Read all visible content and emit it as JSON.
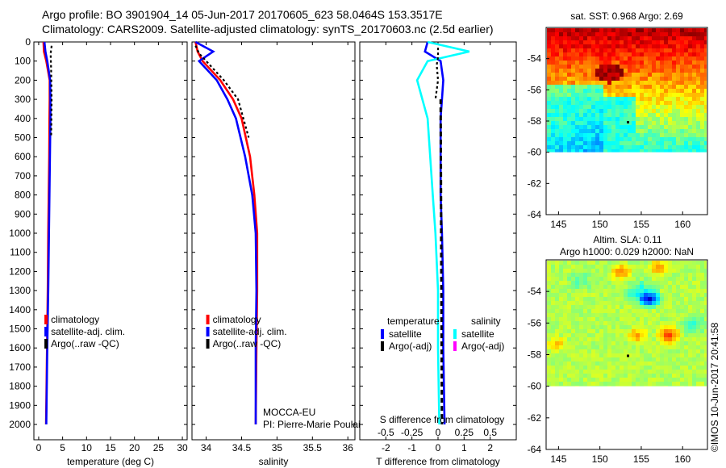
{
  "header": {
    "title_line1": "Argo profile: BO 3901904_14 05-Jun-2017 20170605_623 58.0464S 153.3517E",
    "title_line2": "Climatology: CARS2009. Satellite-adjusted climatology: synTS_20170603.nc (2.5d earlier)"
  },
  "chart_data": [
    {
      "type": "line",
      "id": "temperature",
      "xlabel": "temperature (deg C)",
      "ylabel": "",
      "xlim": [
        -1,
        31
      ],
      "ylim": [
        2080,
        0
      ],
      "xticks": [
        0,
        5,
        10,
        15,
        20,
        25,
        30
      ],
      "yticks": [
        0,
        100,
        200,
        300,
        400,
        500,
        600,
        700,
        800,
        900,
        1000,
        1100,
        1200,
        1300,
        1400,
        1500,
        1600,
        1700,
        1800,
        1900,
        2000
      ],
      "legend": [
        "climatology",
        "satellite-adj. clim.",
        "Argo(..raw -QC)"
      ],
      "series": [
        {
          "name": "climatology",
          "color": "#ff0000",
          "x": [
            1.0,
            1.1,
            1.6,
            2.3,
            2.3,
            2.25,
            2.2,
            2.1,
            2.0,
            1.9,
            1.75,
            1.55
          ],
          "y": [
            0,
            50,
            100,
            200,
            300,
            400,
            600,
            800,
            1000,
            1300,
            1600,
            2000
          ]
        },
        {
          "name": "satellite-adj. clim.",
          "color": "#0000ff",
          "x": [
            1.2,
            1.4,
            1.8,
            2.4,
            2.45,
            2.45,
            2.35,
            2.25,
            2.15,
            2.0,
            1.8,
            1.6
          ],
          "y": [
            0,
            50,
            100,
            200,
            300,
            400,
            600,
            800,
            1000,
            1300,
            1600,
            2000
          ]
        },
        {
          "name": "Argo(..raw -QC)",
          "color": "#000000",
          "x": [
            2.7,
            2.6,
            2.5,
            2.6,
            2.7,
            2.6
          ],
          "y": [
            20,
            40,
            60,
            150,
            300,
            500
          ]
        }
      ]
    },
    {
      "type": "line",
      "id": "salinity",
      "xlabel": "salinity",
      "ylabel": "",
      "xlim": [
        33.8,
        36.1
      ],
      "ylim": [
        2080,
        0
      ],
      "xticks": [
        34,
        34.5,
        35,
        35.5,
        36
      ],
      "xticklabels": [
        "34",
        "34.5",
        "35",
        "35.5",
        "36"
      ],
      "legend": [
        "climatology",
        "satellite-adj. clim.",
        "Argo(..raw -QC)"
      ],
      "annotation": [
        "MOCCA-EU",
        "PI: Pierre-Marie Poulain"
      ],
      "series": [
        {
          "name": "climatology",
          "color": "#ff0000",
          "x": [
            33.85,
            33.88,
            33.95,
            34.2,
            34.38,
            34.5,
            34.62,
            34.68,
            34.72,
            34.72,
            34.71,
            34.7
          ],
          "y": [
            0,
            50,
            100,
            200,
            300,
            400,
            600,
            800,
            1000,
            1300,
            1600,
            2000
          ]
        },
        {
          "name": "satellite-adj. clim.",
          "color": "#0000ff",
          "x": [
            33.85,
            34.1,
            33.9,
            34.15,
            34.3,
            34.42,
            34.55,
            34.65,
            34.7,
            34.71,
            34.7,
            34.7
          ],
          "y": [
            0,
            50,
            100,
            200,
            300,
            400,
            600,
            800,
            1000,
            1300,
            1600,
            2000
          ]
        },
        {
          "name": "Argo(..raw -QC)",
          "color": "#000000",
          "x": [
            33.85,
            33.9,
            34.0,
            34.25,
            34.45,
            34.6
          ],
          "y": [
            20,
            60,
            100,
            200,
            300,
            500
          ]
        }
      ]
    },
    {
      "type": "line",
      "id": "difference",
      "xlabel": "T difference from climatology",
      "top_label": "S difference from climatology",
      "xlim": [
        -3,
        3
      ],
      "ylim": [
        2080,
        0
      ],
      "xticks": [
        -2,
        -1,
        0,
        1,
        2
      ],
      "top_xticks": [
        -0.5,
        -0.25,
        0,
        0.25,
        0.5
      ],
      "top_xticklabels": [
        "-0.5",
        "-0.25",
        "0",
        "0.25",
        "0.5"
      ],
      "legend_groups": [
        {
          "title": "temperature",
          "items": [
            {
              "label": "satellite",
              "color": "#0000ff"
            },
            {
              "label": "Argo(-adj)",
              "color": "#000000"
            }
          ]
        },
        {
          "title": "salinity",
          "items": [
            {
              "label": "satellite",
              "color": "#00ffff"
            },
            {
              "label": "Argo(-adj)",
              "color": "#ff00ff"
            }
          ]
        }
      ],
      "series": [
        {
          "name": "T satellite",
          "color": "#0000ff",
          "x": [
            -0.4,
            -0.5,
            0.1,
            0.2,
            0.15,
            0.1,
            0.1,
            0.1,
            0.15,
            0.2,
            0.2,
            0.25
          ],
          "y": [
            0,
            50,
            100,
            200,
            300,
            400,
            600,
            800,
            1000,
            1300,
            1600,
            2000
          ]
        },
        {
          "name": "S satellite",
          "color": "#00ffff",
          "x": [
            -0.4,
            1.2,
            -0.4,
            -0.8,
            -0.6,
            -0.4,
            -0.3,
            -0.2,
            -0.1,
            0.0,
            0.0,
            0.05
          ],
          "y": [
            0,
            50,
            100,
            200,
            300,
            400,
            600,
            800,
            1000,
            1300,
            1600,
            2000
          ]
        },
        {
          "name": "T Argo",
          "color": "#000000",
          "x": [
            0.0,
            0.0,
            -0.05,
            0.0,
            -0.1
          ],
          "y": [
            30,
            80,
            120,
            200,
            300
          ]
        }
      ]
    },
    {
      "type": "heatmap",
      "id": "sst_map",
      "title": "sat. SST: 0.968 Argo: 2.69",
      "xticks": [
        145,
        150,
        155,
        160
      ],
      "yticks": [
        -54,
        -56,
        -58,
        -60,
        -62,
        -64
      ],
      "xlim": [
        143.5,
        163
      ],
      "ylim": [
        -64,
        -52
      ]
    },
    {
      "type": "heatmap",
      "id": "sla_map",
      "title": "Altim. SLA: 0.11",
      "subtitle": "Argo h1000: 0.029 h2000: NaN",
      "xticks": [
        145,
        150,
        155,
        160
      ],
      "yticks": [
        -54,
        -56,
        -58,
        -60,
        -62,
        -64
      ],
      "xlim": [
        143.5,
        163
      ],
      "ylim": [
        -64,
        -52
      ]
    }
  ],
  "watermark": "©IMOS 10-Jun-2017 20:41:58"
}
